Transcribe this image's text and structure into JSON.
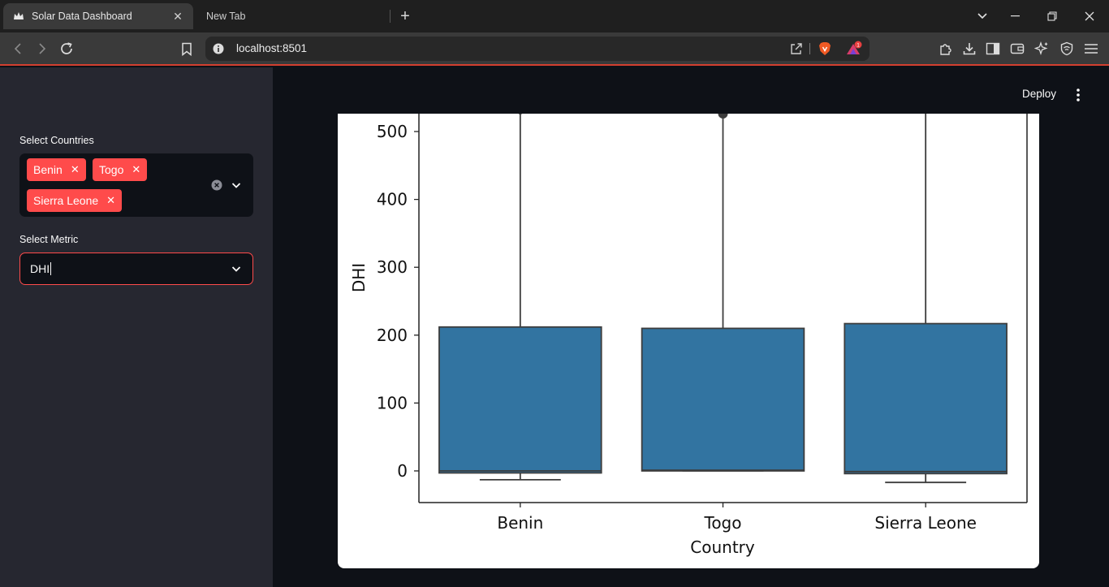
{
  "browser": {
    "tabs": [
      {
        "title": "Solar Data Dashboard",
        "active": true,
        "icon": "streamlit-crown-icon"
      },
      {
        "title": "New Tab",
        "active": false
      }
    ],
    "url": "localhost:8501",
    "rewards_badge": "1",
    "accent": "#d33f2f"
  },
  "sidebar": {
    "countries_label": "Select Countries",
    "selected_countries": [
      "Benin",
      "Togo",
      "Sierra Leone"
    ],
    "metric_label": "Select Metric",
    "metric_value": "DHI"
  },
  "header": {
    "deploy_label": "Deploy"
  },
  "theme": {
    "primary": "#ff4b4b",
    "box_fill": "#3274a1"
  },
  "chart_data": {
    "type": "box",
    "xlabel": "Country",
    "ylabel": "DHI",
    "categories": [
      "Benin",
      "Togo",
      "Sierra Leone"
    ],
    "ylim": [
      -47,
      527
    ],
    "yticks": [
      0,
      100,
      200,
      300,
      400,
      500
    ],
    "boxes": [
      {
        "category": "Benin",
        "whisker_low": -13,
        "q1": -3,
        "median": 0,
        "q3": 212,
        "whisker_high": 527,
        "outlier_top": true
      },
      {
        "category": "Togo",
        "whisker_low": 0,
        "q1": 0,
        "median": 1,
        "q3": 210,
        "whisker_high": 527,
        "outlier_top": true
      },
      {
        "category": "Sierra Leone",
        "whisker_low": -17,
        "q1": -4,
        "median": -1,
        "q3": 217,
        "whisker_high": 527,
        "outlier_top": false
      }
    ]
  }
}
